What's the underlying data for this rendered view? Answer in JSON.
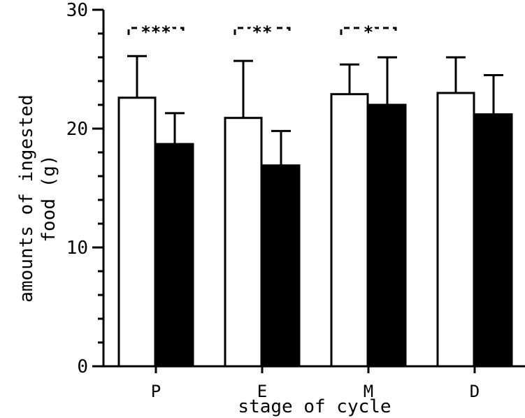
{
  "chart_data": {
    "type": "bar",
    "title": "",
    "xlabel": "stage of cycle",
    "ylabel_lines": [
      "amounts of ingested",
      "food (g)"
    ],
    "categories": [
      "P",
      "E",
      "M",
      "D"
    ],
    "ylim": [
      0,
      30
    ],
    "yticks": [
      0,
      10,
      20,
      30
    ],
    "yticks_labels": [
      "0",
      "10",
      "20",
      "30"
    ],
    "minor_ytick_step": 2,
    "grid": false,
    "legend": "none",
    "series": [
      {
        "values": [
          22.6,
          20.9,
          22.9,
          23.0
        ],
        "errors": [
          3.5,
          4.8,
          2.5,
          3.0
        ],
        "fill": "#ffffff"
      },
      {
        "values": [
          18.7,
          16.9,
          22.0,
          21.2
        ],
        "errors": [
          2.6,
          2.9,
          4.0,
          3.3
        ],
        "fill": "#000000"
      }
    ],
    "significance": [
      {
        "category": "P",
        "label": "***"
      },
      {
        "category": "E",
        "label": "**"
      },
      {
        "category": "M",
        "label": "*"
      }
    ]
  }
}
